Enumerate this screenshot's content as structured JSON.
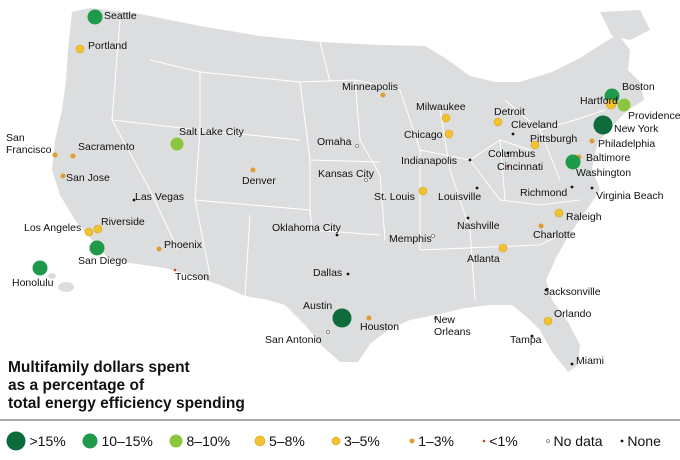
{
  "title_lines": [
    "Multifamily dollars spent",
    "as a percentage of",
    "total energy efficiency spending"
  ],
  "colors": {
    "land": "#dcdddf",
    "border": "#ffffff",
    "gt15": "#0e6b3a",
    "c10_15": "#1f9a4a",
    "c8_10": "#8cc63f",
    "c5_8": "#f2c230",
    "c3_5": "#f2c230",
    "c1_3": "#e59a35",
    "lt1": "#d0402e",
    "none": "#111111"
  },
  "legend": [
    {
      "key": "gt15",
      "label": ">15%"
    },
    {
      "key": "c10_15",
      "label": "10–15%"
    },
    {
      "key": "c8_10",
      "label": "8–10%"
    },
    {
      "key": "c5_8",
      "label": "5–8%"
    },
    {
      "key": "c3_5",
      "label": "3–5%"
    },
    {
      "key": "c1_3",
      "label": "1–3%"
    },
    {
      "key": "lt1",
      "label": "<1%"
    },
    {
      "key": "nodata",
      "label": "No data"
    },
    {
      "key": "none",
      "label": "None"
    }
  ],
  "cities": [
    {
      "name": "Seattle",
      "cat": "c10_15"
    },
    {
      "name": "Portland",
      "cat": "c3_5"
    },
    {
      "name": "Minneapolis",
      "cat": "c1_3"
    },
    {
      "name": "Boston",
      "cat": "c10_15"
    },
    {
      "name": "Hartford",
      "cat": "c5_8"
    },
    {
      "name": "Providence",
      "cat": "c8_10"
    },
    {
      "name": "New York",
      "cat": "gt15"
    },
    {
      "name": "Milwaukee",
      "cat": "c3_5"
    },
    {
      "name": "Detroit",
      "cat": "c3_5"
    },
    {
      "name": "Cleveland",
      "cat": "none"
    },
    {
      "name": "Chicago",
      "cat": "c3_5"
    },
    {
      "name": "Pittsburgh",
      "cat": "c3_5"
    },
    {
      "name": "Philadelphia",
      "cat": "c1_3"
    },
    {
      "name": "Salt Lake City",
      "cat": "c8_10"
    },
    {
      "name": "Omaha",
      "cat": "nodata"
    },
    {
      "name": "Columbus",
      "cat": "none"
    },
    {
      "name": "Baltimore",
      "cat": "c1_3"
    },
    {
      "name": "Washington",
      "cat": "c10_15"
    },
    {
      "name": "San Francisco",
      "cat": "c1_3"
    },
    {
      "name": "Sacramento",
      "cat": "c1_3"
    },
    {
      "name": "Indianapolis",
      "cat": "none"
    },
    {
      "name": "Cincinnati",
      "cat": "lt1"
    },
    {
      "name": "San Jose",
      "cat": "c1_3"
    },
    {
      "name": "Denver",
      "cat": "c1_3"
    },
    {
      "name": "Kansas City",
      "cat": "nodata"
    },
    {
      "name": "St. Louis",
      "cat": "c3_5"
    },
    {
      "name": "Louisville",
      "cat": "none"
    },
    {
      "name": "Richmond",
      "cat": "none"
    },
    {
      "name": "Virginia Beach",
      "cat": "none"
    },
    {
      "name": "Las Vegas",
      "cat": "none"
    },
    {
      "name": "Raleigh",
      "cat": "c3_5"
    },
    {
      "name": "Los Angeles",
      "cat": "c3_5"
    },
    {
      "name": "Riverside",
      "cat": "c3_5"
    },
    {
      "name": "Nashville",
      "cat": "none"
    },
    {
      "name": "Charlotte",
      "cat": "c1_3"
    },
    {
      "name": "Oklahoma City",
      "cat": "none"
    },
    {
      "name": "Memphis",
      "cat": "nodata"
    },
    {
      "name": "San Diego",
      "cat": "c10_15"
    },
    {
      "name": "Phoenix",
      "cat": "c1_3"
    },
    {
      "name": "Atlanta",
      "cat": "c3_5"
    },
    {
      "name": "Honolulu",
      "cat": "c10_15"
    },
    {
      "name": "Tucson",
      "cat": "lt1"
    },
    {
      "name": "Dallas",
      "cat": "none"
    },
    {
      "name": "Jacksonville",
      "cat": "none"
    },
    {
      "name": "Austin",
      "cat": "gt15"
    },
    {
      "name": "Orlando",
      "cat": "c3_5"
    },
    {
      "name": "Houston",
      "cat": "c1_3"
    },
    {
      "name": "New Orleans",
      "cat": "nodata"
    },
    {
      "name": "San Antonio",
      "cat": "nodata"
    },
    {
      "name": "Tampa",
      "cat": "none"
    },
    {
      "name": "Miami",
      "cat": "none"
    }
  ]
}
